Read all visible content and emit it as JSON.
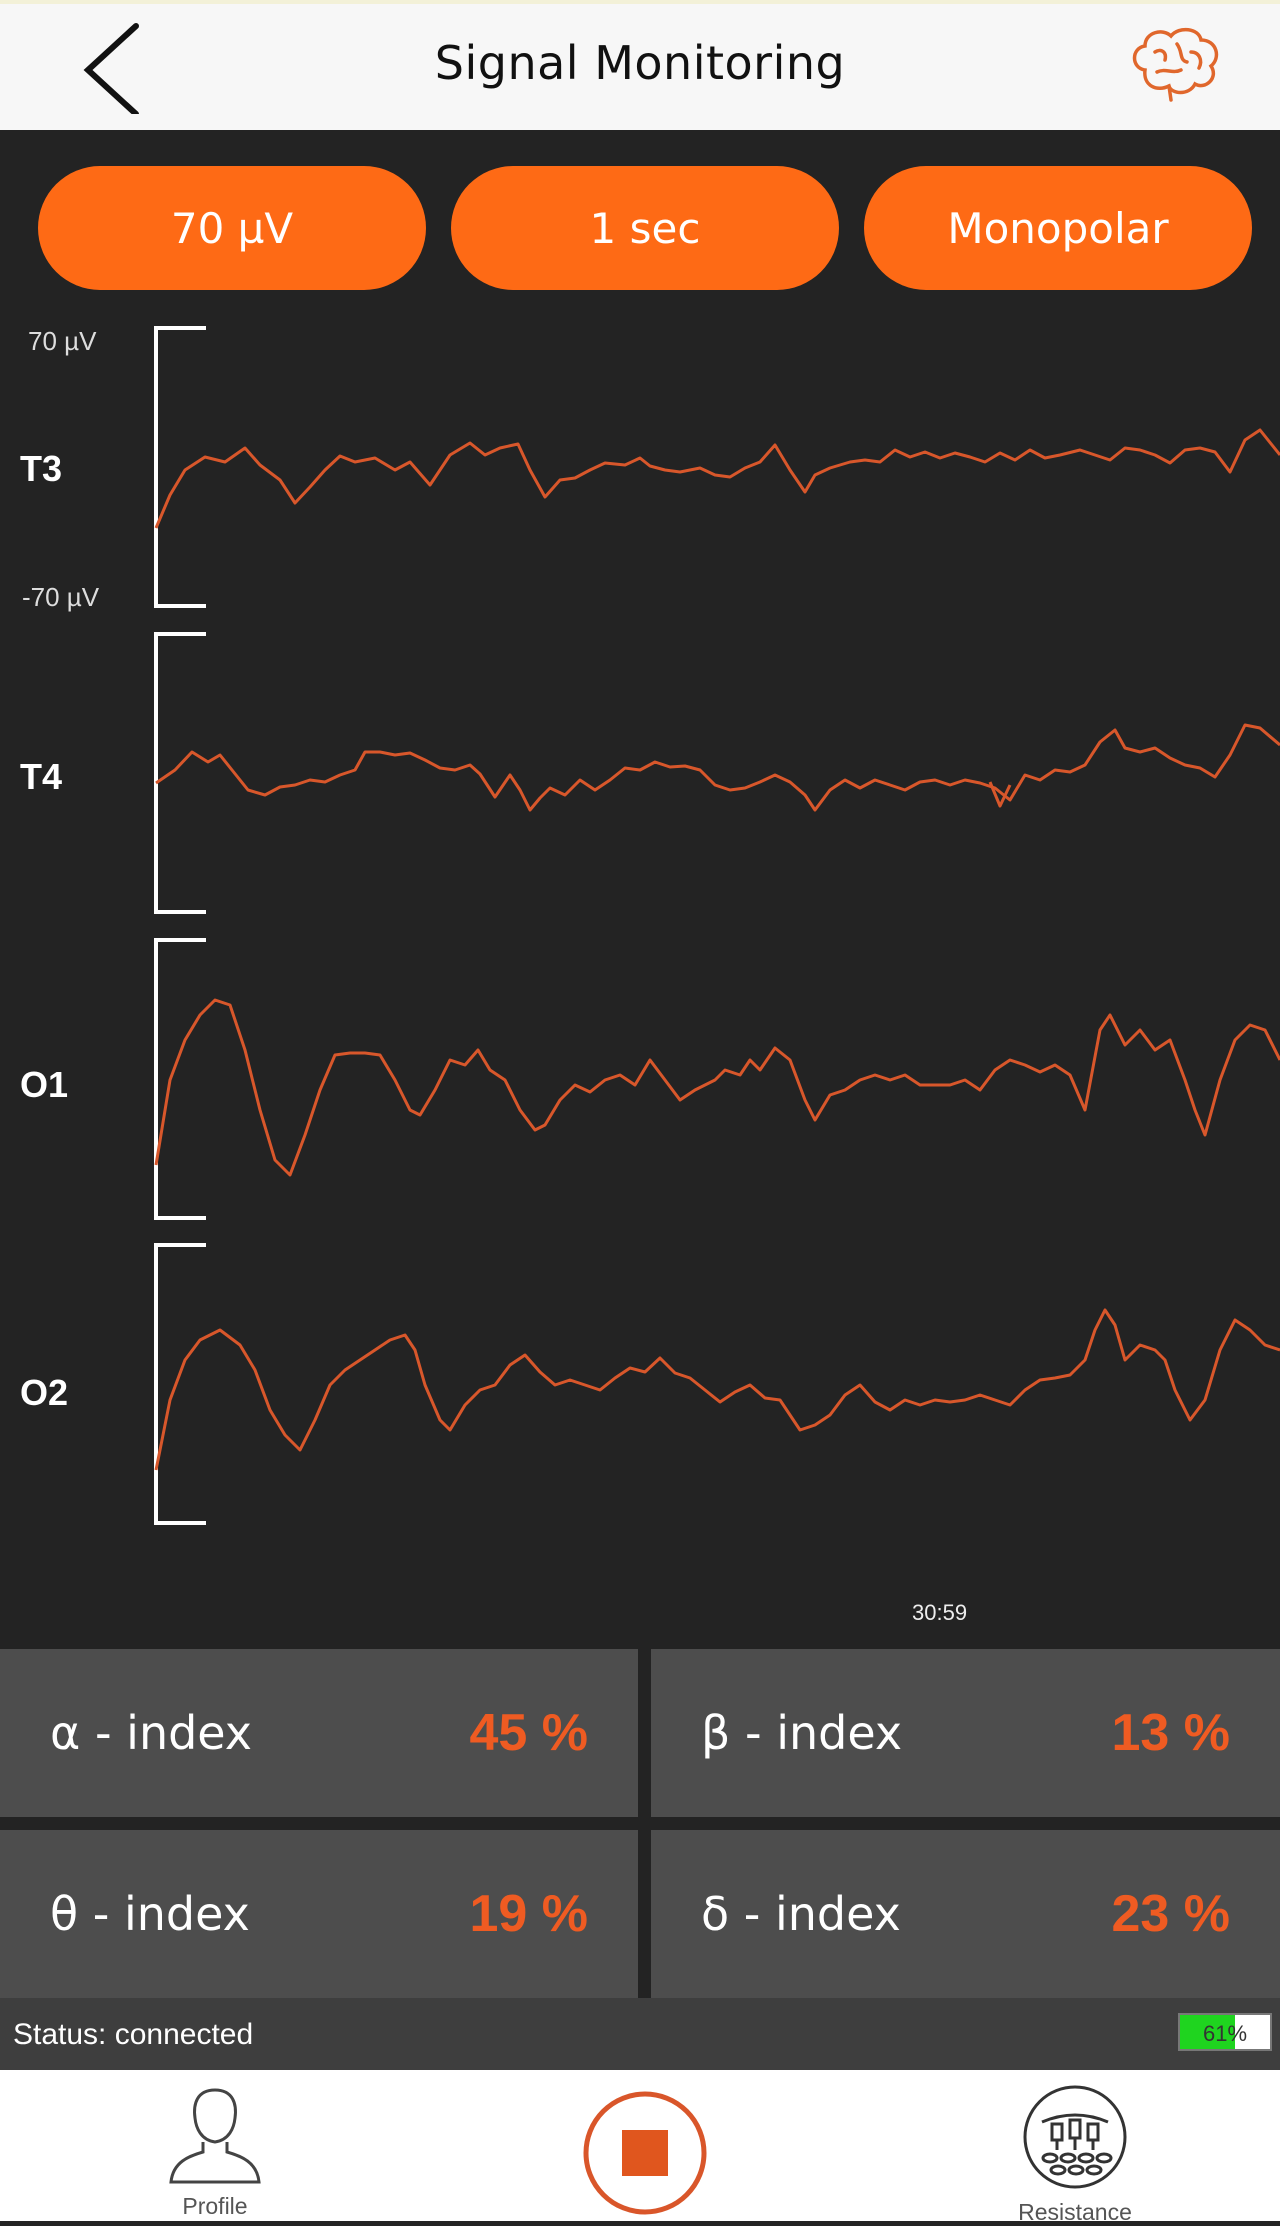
{
  "header": {
    "title": "Signal Monitoring",
    "back_icon": "chevron-left-icon",
    "brain_icon": "brain-icon"
  },
  "controls": {
    "amplitude": "70 µV",
    "time_window": "1 sec",
    "montage": "Monopolar"
  },
  "scale": {
    "top": "70 µV",
    "bottom": "-70 µV"
  },
  "channels": [
    {
      "name": "T3"
    },
    {
      "name": "T4"
    },
    {
      "name": "O1"
    },
    {
      "name": "O2"
    }
  ],
  "timecode": "30:59",
  "indices": {
    "alpha": {
      "label": "α - index",
      "value": "45 %"
    },
    "beta": {
      "label": "β - index",
      "value": "13 %"
    },
    "theta": {
      "label": "θ - index",
      "value": "19 %"
    },
    "delta": {
      "label": "δ - index",
      "value": "23 %"
    }
  },
  "status": {
    "text": "Status: connected",
    "battery_text": "61%",
    "battery_level": 0.61
  },
  "tabbar": {
    "profile_label": "Profile",
    "resistance_label": "Resistance"
  },
  "colors": {
    "accent": "#fe6a15",
    "trace": "#d8572b",
    "index_value": "#ef5b22",
    "battery": "#1fd41f"
  }
}
